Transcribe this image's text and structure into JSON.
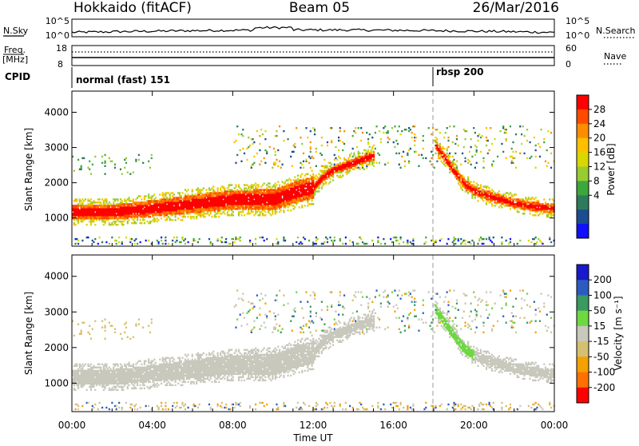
{
  "header": {
    "station": "Hokkaido (fitACF)",
    "beam": "Beam 05",
    "date": "26/Mar/2016"
  },
  "strips": {
    "nsky_label": "N.Sky",
    "nsky_ticks": [
      "10^5",
      "10^0"
    ],
    "nsearch_label": "N.Search",
    "nsearch_ticks": [
      "10^5",
      "10^0"
    ],
    "freq_label_1": "Freq.",
    "freq_label_2": "[MHz]",
    "freq_ticks": [
      "18",
      "8"
    ],
    "nave_label": "Nave",
    "nave_ticks": [
      "60",
      "0"
    ],
    "cpid_label": "CPID",
    "cpid_modes": [
      {
        "name": "normal (fast) 151",
        "start": "00:00"
      },
      {
        "name": "rbsp 200",
        "start": "18:00"
      }
    ]
  },
  "chart_data": [
    {
      "type": "heatmap",
      "title": "",
      "quantity": "Power",
      "xlabel": "Time UT",
      "ylabel": "Slant Range [km]",
      "colorbar_label": "Power [dB]",
      "colorbar_ticks": [
        "28",
        "24",
        "20",
        "16",
        "12",
        "8",
        "4"
      ],
      "colorbar_colors": [
        "#ff0000",
        "#ff4a00",
        "#ff8c00",
        "#ffc000",
        "#d8d800",
        "#98cc30",
        "#3ca83c",
        "#2e7b5c",
        "#1c4d90",
        "#1010ff"
      ],
      "x_ticks": [
        "00:00",
        "04:00",
        "08:00",
        "12:00",
        "16:00",
        "20:00",
        "00:00"
      ],
      "y_ticks": [
        "1000",
        "2000",
        "3000",
        "4000"
      ],
      "xlim": [
        0,
        24
      ],
      "ylim": [
        200,
        4600
      ],
      "marker_time_hours": 18,
      "approx_series": [
        {
          "name": "main band",
          "x": [
            0,
            2,
            4,
            6,
            8,
            10,
            11,
            12,
            12.5,
            13,
            13.5,
            14,
            14.5,
            15
          ],
          "y": [
            1150,
            1150,
            1250,
            1380,
            1500,
            1500,
            1700,
            1850,
            2150,
            2350,
            2450,
            2550,
            2650,
            2750
          ]
        },
        {
          "name": "post-rbsp band",
          "x": [
            18,
            18.5,
            19,
            19.5,
            20,
            21,
            22,
            23,
            24
          ],
          "y": [
            3100,
            2700,
            2300,
            1950,
            1750,
            1550,
            1400,
            1300,
            1250
          ]
        }
      ]
    },
    {
      "type": "heatmap",
      "title": "",
      "quantity": "Velocity",
      "xlabel": "Time UT",
      "ylabel": "Slant Range [km]",
      "colorbar_label": "Velocity [m s⁻¹]",
      "colorbar_ticks": [
        "200",
        "100",
        "50",
        "15",
        "-15",
        "-50",
        "-100",
        "-200"
      ],
      "colorbar_colors": [
        "#1818cc",
        "#2b5bc0",
        "#3a9a60",
        "#6ed840",
        "#c8c8bc",
        "#d4c070",
        "#f4a000",
        "#ff7000",
        "#ff0000"
      ],
      "x_ticks": [
        "00:00",
        "04:00",
        "08:00",
        "12:00",
        "16:00",
        "20:00",
        "00:00"
      ],
      "y_ticks": [
        "1000",
        "2000",
        "3000",
        "4000"
      ],
      "xlim": [
        0,
        24
      ],
      "ylim": [
        200,
        4600
      ],
      "marker_time_hours": 18
    }
  ]
}
